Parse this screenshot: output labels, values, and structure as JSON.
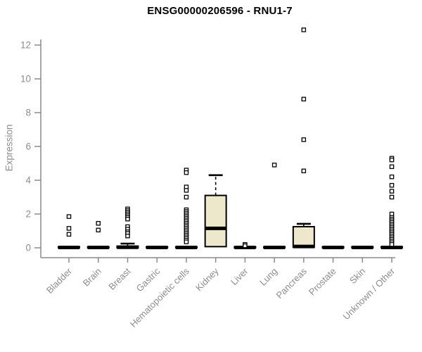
{
  "chart_data": {
    "type": "boxplot",
    "title": "ENSG00000206596 - RNU1-7",
    "ylabel": "Expression",
    "xlabel": "",
    "ylim": [
      0,
      13
    ],
    "yticks": [
      0,
      2,
      4,
      6,
      8,
      10,
      12
    ],
    "grid": false,
    "legend": "none",
    "colors": {
      "box_fill": "#ede7cc",
      "box_stroke": "#000000",
      "median": "#000000",
      "outlier_fill": "#ffffff",
      "outlier_stroke": "#000000",
      "axis": "#8a8a8a",
      "tick_label": "#8c8c8c",
      "title": "#000000"
    },
    "categories": [
      {
        "label": "Bladder",
        "box": {
          "lo": 0,
          "q1": 0,
          "med": 0.02,
          "q3": 0.06,
          "hi": 0.06
        },
        "outliers": [
          1.85,
          1.15,
          0.8
        ]
      },
      {
        "label": "Brain",
        "box": {
          "lo": 0,
          "q1": 0,
          "med": 0.02,
          "q3": 0.06,
          "hi": 0.06
        },
        "outliers": [
          1.45,
          1.05
        ]
      },
      {
        "label": "Breast",
        "box": {
          "lo": 0,
          "q1": 0,
          "med": 0.03,
          "q3": 0.1,
          "hi": 0.25
        },
        "outliers": [
          2.3,
          2.2,
          2.1,
          2.0,
          1.9,
          1.8,
          1.7,
          1.25,
          1.1,
          0.95,
          0.85,
          0.7
        ]
      },
      {
        "label": "Gastric",
        "box": {
          "lo": 0,
          "q1": 0,
          "med": 0.02,
          "q3": 0.06,
          "hi": 0.06
        },
        "outliers": []
      },
      {
        "label": "Hematopoietic cells",
        "box": {
          "lo": 0,
          "q1": 0,
          "med": 0.02,
          "q3": 0.06,
          "hi": 0.06
        },
        "outliers": [
          4.6,
          4.45,
          3.6,
          3.4,
          3.0,
          2.25,
          2.15,
          2.05,
          1.95,
          1.85,
          1.75,
          1.65,
          1.55,
          1.45,
          1.35,
          1.25,
          1.15,
          1.05,
          0.95,
          0.85,
          0.75,
          0.65,
          0.55,
          0.45,
          0.35
        ]
      },
      {
        "label": "Kidney",
        "box": {
          "lo": 0.07,
          "q1": 0.07,
          "med": 1.15,
          "q3": 3.1,
          "hi": 4.3
        },
        "outliers": []
      },
      {
        "label": "Liver",
        "box": {
          "lo": 0,
          "q1": 0,
          "med": 0.02,
          "q3": 0.06,
          "hi": 0.06
        },
        "outliers": [
          0.2,
          0.12
        ]
      },
      {
        "label": "Lung",
        "box": {
          "lo": 0,
          "q1": 0,
          "med": 0.02,
          "q3": 0.06,
          "hi": 0.06
        },
        "outliers": [
          4.9
        ]
      },
      {
        "label": "Pancreas",
        "box": {
          "lo": 0.03,
          "q1": 0.03,
          "med": 0.08,
          "q3": 1.25,
          "hi": 1.42
        },
        "outliers": [
          12.9,
          8.8,
          6.4,
          4.55
        ]
      },
      {
        "label": "Prostate",
        "box": {
          "lo": 0,
          "q1": 0,
          "med": 0.02,
          "q3": 0.06,
          "hi": 0.06
        },
        "outliers": []
      },
      {
        "label": "Skin",
        "box": {
          "lo": 0,
          "q1": 0,
          "med": 0.02,
          "q3": 0.06,
          "hi": 0.06
        },
        "outliers": []
      },
      {
        "label": "Unknown / Other",
        "box": {
          "lo": 0,
          "q1": 0,
          "med": 0.02,
          "q3": 0.06,
          "hi": 0.06
        },
        "outliers": [
          5.3,
          5.2,
          4.8,
          4.2,
          3.7,
          3.35,
          3.0,
          2.0,
          1.8,
          1.7,
          1.6,
          1.5,
          1.4,
          1.3,
          1.2,
          1.1,
          1.0,
          0.9,
          0.8,
          0.7,
          0.6,
          0.5,
          0.4,
          0.3,
          0.2
        ]
      }
    ]
  }
}
